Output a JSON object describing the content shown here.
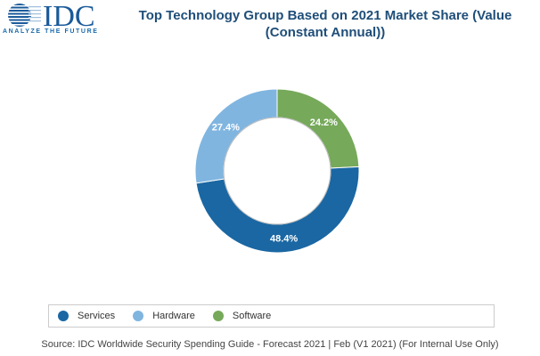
{
  "logo": {
    "brand": "IDC",
    "tagline": "ANALYZE THE FUTURE"
  },
  "chart_data": {
    "type": "pie",
    "variant": "donut",
    "title": "Top Technology Group Based on 2021 Market Share (Value (Constant Annual))",
    "title_lines": [
      "Top Technology Group Based on 2021 Market Share (Value",
      "(Constant Annual))"
    ],
    "categories": [
      "Services",
      "Hardware",
      "Software"
    ],
    "values": [
      48.4,
      27.4,
      24.2
    ],
    "labels": [
      "48.4%",
      "27.4%",
      "24.2%"
    ],
    "colors": [
      "#1a67a3",
      "#80b5e0",
      "#76a95a"
    ],
    "legend": {
      "position": "bottom",
      "entries": [
        "Services",
        "Hardware",
        "Software"
      ]
    }
  },
  "source": "Source: IDC Worldwide Security Spending Guide - Forecast 2021 | Feb (V1 2021) (For Internal Use Only)"
}
